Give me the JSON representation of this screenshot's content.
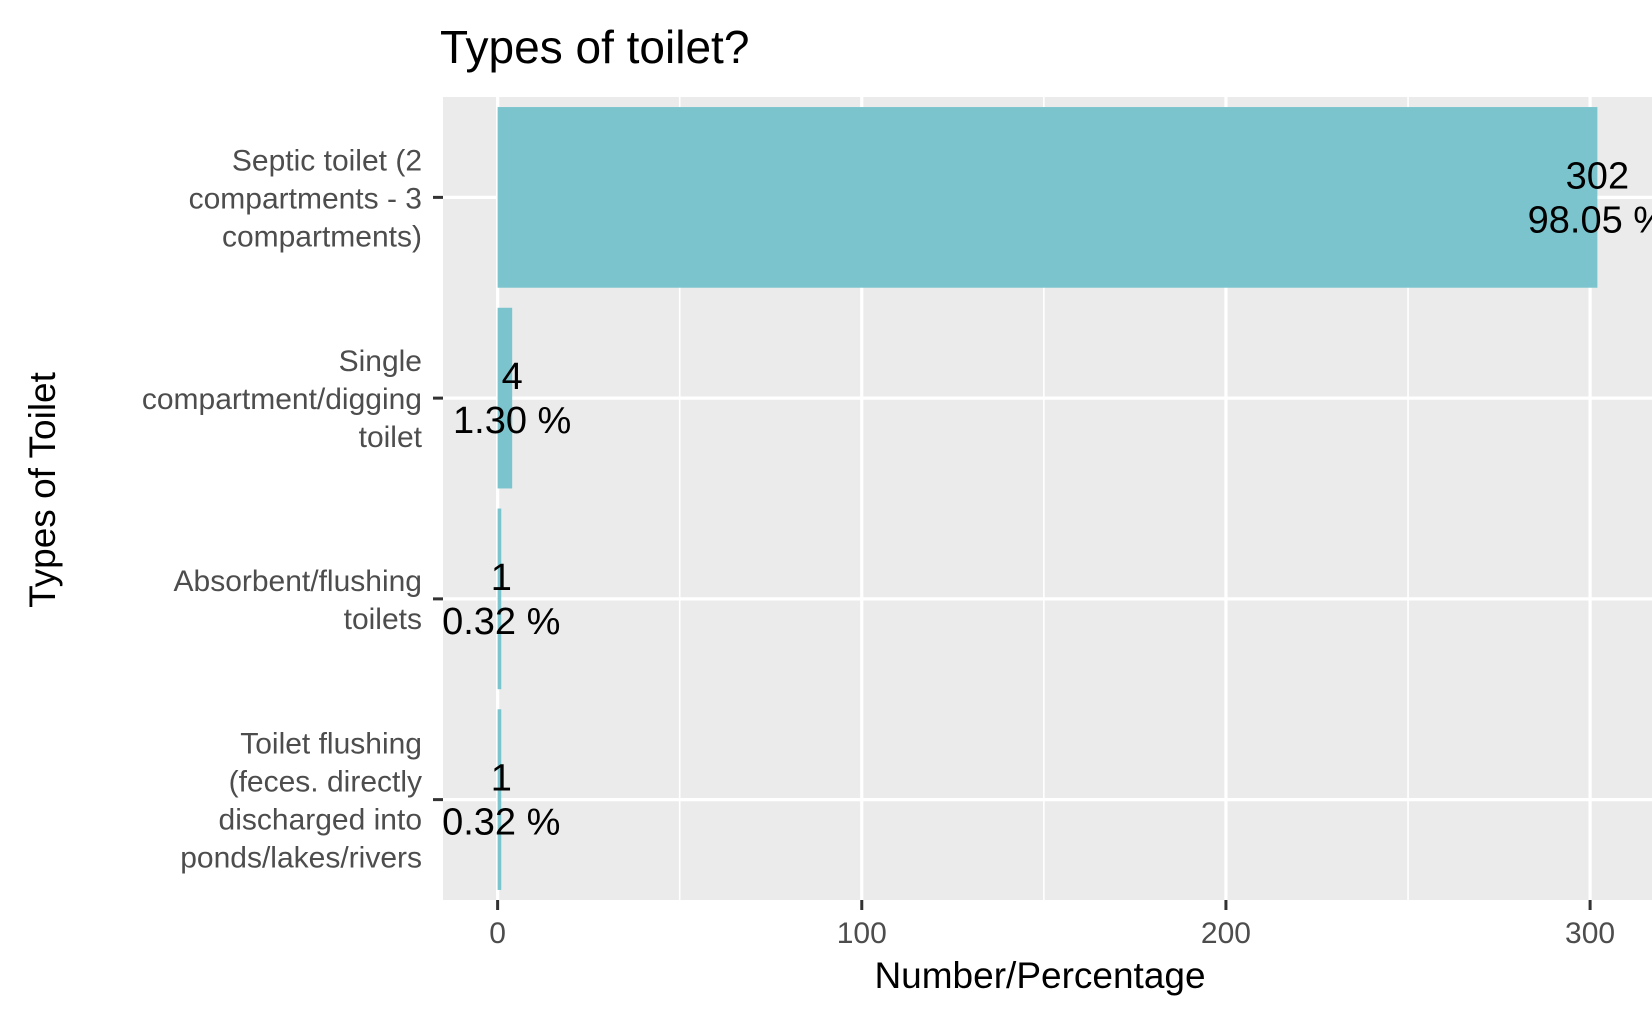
{
  "chart_data": {
    "type": "bar",
    "orientation": "horizontal",
    "title": "Types of toilet?",
    "xlabel": "Number/Percentage",
    "ylabel": "Types of Toilet",
    "xlim": [
      -15,
      317
    ],
    "xticks": [
      0,
      100,
      200,
      300
    ],
    "grid": true,
    "bar_color": "#7bc4cd",
    "panel_color": "#ebebeb",
    "categories": [
      [
        "Septic toilet (2",
        "compartments - 3",
        "compartments)"
      ],
      [
        "Single",
        "compartment/digging",
        "toilet"
      ],
      [
        "Absorbent/flushing",
        "toilets"
      ],
      [
        "Toilet flushing",
        "(feces. directly",
        "discharged into",
        "ponds/lakes/rivers"
      ]
    ],
    "values": [
      302,
      4,
      1,
      1
    ],
    "data_labels": [
      [
        "302",
        "98.05 %"
      ],
      [
        "4",
        "1.30 %"
      ],
      [
        "1",
        "0.32 %"
      ],
      [
        "1",
        "0.32 %"
      ]
    ]
  }
}
